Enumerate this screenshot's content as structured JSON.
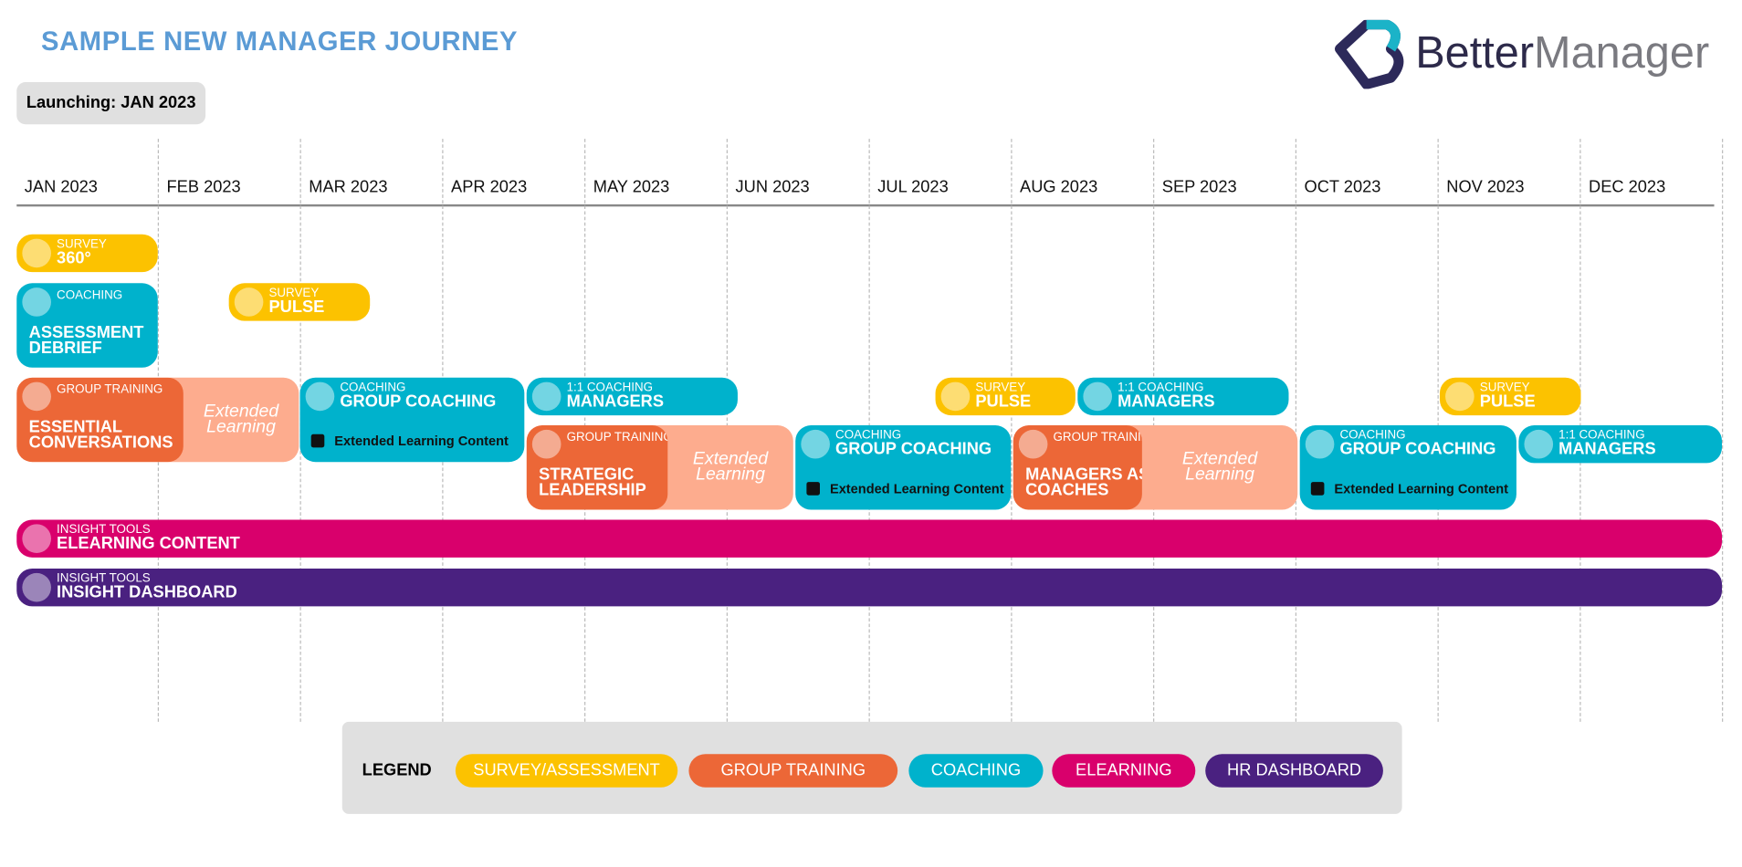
{
  "header": {
    "title": "SAMPLE NEW MANAGER JOURNEY",
    "launch": "Launching: JAN 2023"
  },
  "logo": {
    "part1": "Better",
    "part2": "Manager"
  },
  "months": [
    "JAN 2023",
    "FEB 2023",
    "MAR 2023",
    "APR 2023",
    "MAY 2023",
    "JUN 2023",
    "JUL 2023",
    "AUG 2023",
    "SEP 2023",
    "OCT 2023",
    "NOV 2023",
    "DEC 2023"
  ],
  "items": [
    {
      "label": "SURVEY",
      "title": "360°"
    },
    {
      "label": "SURVEY",
      "title": "PULSE"
    },
    {
      "label": "COACHING",
      "title": "ASSESSMENT DEBRIEF"
    },
    {
      "label": "GROUP TRAINING",
      "title": "ESSENTIAL CONVERSATIONS",
      "extended": "Extended Learning"
    },
    {
      "label": "COACHING",
      "title": "GROUP COACHING",
      "content": "Extended Learning Content"
    },
    {
      "label": "1:1 COACHING",
      "title": "MANAGERS"
    },
    {
      "label": "GROUP TRAINING",
      "title": "STRATEGIC LEADERSHIP",
      "extended": "Extended Learning"
    },
    {
      "label": "COACHING",
      "title": "GROUP COACHING",
      "content": "Extended Learning Content"
    },
    {
      "label": "SURVEY",
      "title": "PULSE"
    },
    {
      "label": "1:1 COACHING",
      "title": "MANAGERS"
    },
    {
      "label": "GROUP TRAINING",
      "title": "MANAGERS AS COACHES",
      "extended": "Extended Learning"
    },
    {
      "label": "COACHING",
      "title": "GROUP COACHING",
      "content": "Extended Learning Content"
    },
    {
      "label": "SURVEY",
      "title": "PULSE"
    },
    {
      "label": "1:1 COACHING",
      "title": "MANAGERS"
    },
    {
      "label": "INSIGHT TOOLS",
      "title": "ELEARNING CONTENT"
    },
    {
      "label": "INSIGHT TOOLS",
      "title": "INSIGHT DASHBOARD"
    }
  ],
  "legend": {
    "title": "LEGEND",
    "entries": [
      {
        "label": "SURVEY/ASSESSMENT",
        "color": "#fcc200"
      },
      {
        "label": "GROUP TRAINING",
        "color": "#ec6737"
      },
      {
        "label": "COACHING",
        "color": "#00b2cc"
      },
      {
        "label": "ELEARNING",
        "color": "#d9006c"
      },
      {
        "label": "HR DASHBOARD",
        "color": "#4a2180"
      }
    ]
  }
}
